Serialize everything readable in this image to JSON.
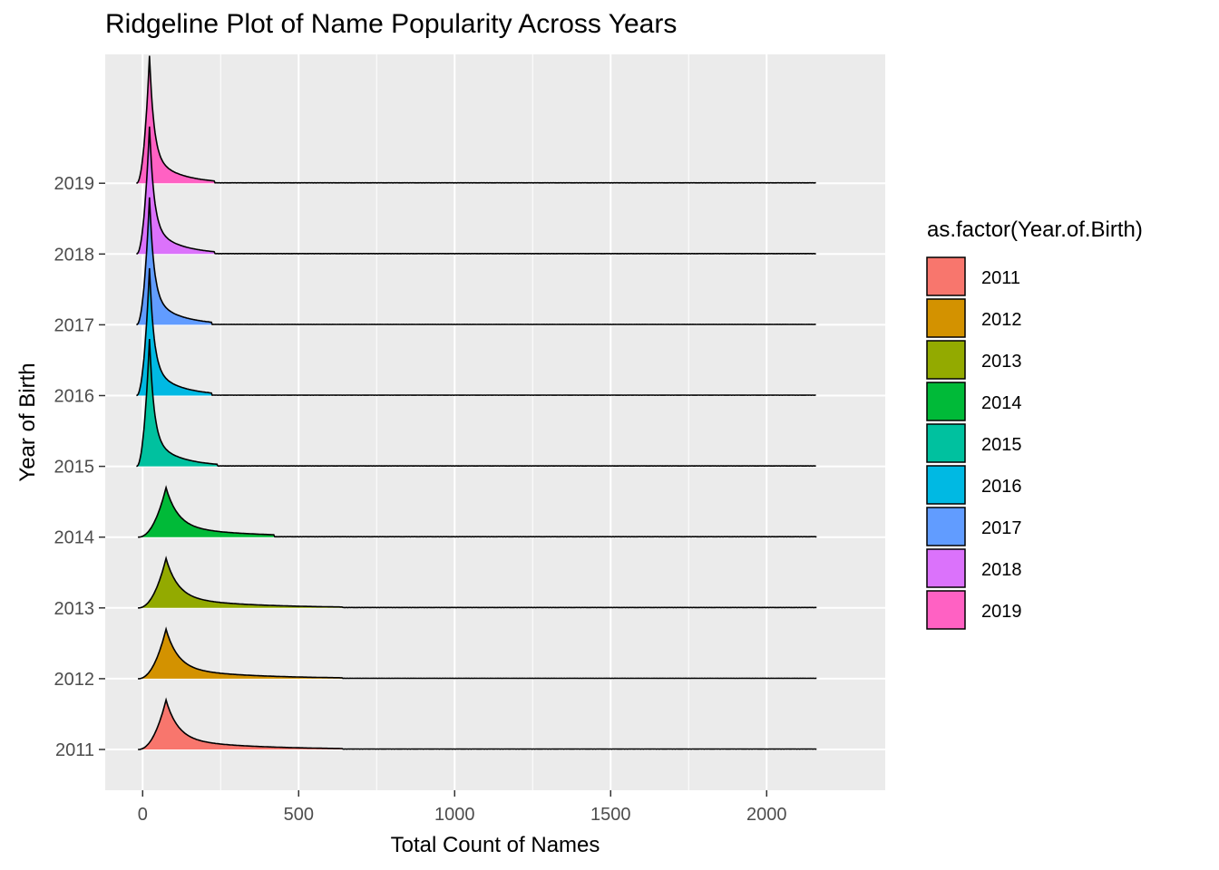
{
  "chart_data": {
    "type": "ridgeline",
    "title": "Ridgeline Plot of Name Popularity Across Years",
    "xlabel": "Total Count of Names",
    "ylabel": "Year of Birth",
    "xlim": [
      -120,
      2380
    ],
    "x_ticks": [
      0,
      500,
      1000,
      1500,
      2000
    ],
    "x_tick_labels": [
      "0",
      "500",
      "1000",
      "1500",
      "2000"
    ],
    "y_categories": [
      "2011",
      "2012",
      "2013",
      "2014",
      "2015",
      "2016",
      "2017",
      "2018",
      "2019"
    ],
    "legend_title": "as.factor(Year.of.Birth)",
    "legend_position": "right",
    "grid": true,
    "series": [
      {
        "name": "2011",
        "color": "#F8766D",
        "x_min": -15,
        "x_max": 2160,
        "mode": 75,
        "peak_height": 0.7,
        "fill_to": 640
      },
      {
        "name": "2012",
        "color": "#D39200",
        "x_min": -15,
        "x_max": 2160,
        "mode": 75,
        "peak_height": 0.7,
        "fill_to": 640
      },
      {
        "name": "2013",
        "color": "#93AA00",
        "x_min": -15,
        "x_max": 2160,
        "mode": 75,
        "peak_height": 0.7,
        "fill_to": 640
      },
      {
        "name": "2014",
        "color": "#00BA38",
        "x_min": -15,
        "x_max": 2160,
        "mode": 75,
        "peak_height": 0.7,
        "fill_to": 420
      },
      {
        "name": "2015",
        "color": "#00C19F",
        "x_min": -20,
        "x_max": 2160,
        "mode": 22,
        "peak_height": 1.8,
        "fill_to": 240
      },
      {
        "name": "2016",
        "color": "#00B9E3",
        "x_min": -20,
        "x_max": 2160,
        "mode": 22,
        "peak_height": 1.8,
        "fill_to": 220
      },
      {
        "name": "2017",
        "color": "#619CFF",
        "x_min": -20,
        "x_max": 2160,
        "mode": 22,
        "peak_height": 1.8,
        "fill_to": 220
      },
      {
        "name": "2018",
        "color": "#DB72FB",
        "x_min": -20,
        "x_max": 2160,
        "mode": 22,
        "peak_height": 1.8,
        "fill_to": 230
      },
      {
        "name": "2019",
        "color": "#FF61C3",
        "x_min": -20,
        "x_max": 2160,
        "mode": 22,
        "peak_height": 1.8,
        "fill_to": 230
      }
    ]
  }
}
